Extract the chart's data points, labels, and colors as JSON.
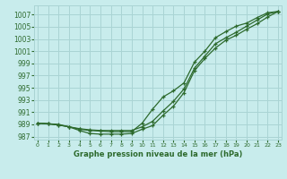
{
  "title": "Graphe pression niveau de la mer (hPa)",
  "bg_color": "#c8ecec",
  "grid_color": "#aad4d4",
  "line_color": "#2d6a2d",
  "x_ticks": [
    0,
    1,
    2,
    3,
    4,
    5,
    6,
    7,
    8,
    9,
    10,
    11,
    12,
    13,
    14,
    15,
    16,
    17,
    18,
    19,
    20,
    21,
    22,
    23
  ],
  "y_ticks": [
    987,
    989,
    991,
    993,
    995,
    997,
    999,
    1001,
    1003,
    1005,
    1007
  ],
  "ylim": [
    986.5,
    1008.5
  ],
  "xlim": [
    -0.3,
    23.3
  ],
  "series1": [
    989.2,
    989.1,
    988.9,
    988.6,
    988.2,
    988.0,
    987.9,
    987.8,
    987.8,
    987.8,
    989.2,
    991.5,
    993.5,
    994.5,
    995.8,
    999.2,
    1001.0,
    1003.2,
    1004.2,
    1005.1,
    1005.6,
    1006.5,
    1007.3,
    1007.5
  ],
  "series2": [
    989.2,
    989.1,
    988.9,
    988.6,
    988.0,
    987.5,
    987.4,
    987.4,
    987.4,
    987.5,
    988.2,
    988.8,
    990.5,
    992.0,
    994.2,
    997.8,
    999.8,
    1001.5,
    1002.8,
    1003.6,
    1004.6,
    1005.5,
    1006.6,
    1007.5
  ],
  "series3": [
    989.2,
    989.1,
    989.0,
    988.6,
    988.3,
    988.1,
    988.0,
    988.0,
    988.0,
    988.0,
    988.6,
    989.5,
    991.2,
    992.8,
    994.8,
    998.2,
    1000.2,
    1002.2,
    1003.2,
    1004.1,
    1005.1,
    1006.1,
    1007.1,
    1007.5
  ]
}
